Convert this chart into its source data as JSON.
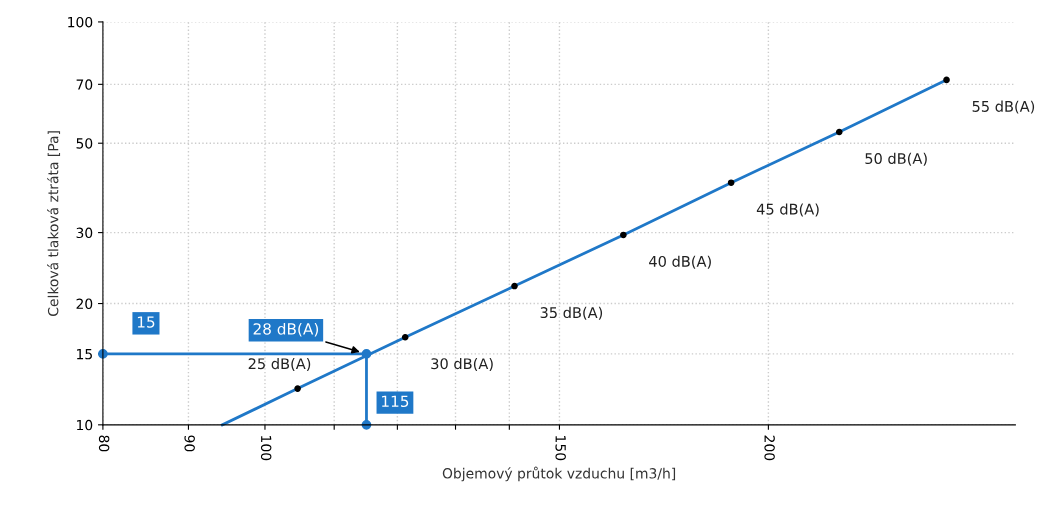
{
  "chart_data": {
    "type": "line",
    "xlabel": "Objemový průtok vzduchu [m3/h]",
    "ylabel": "Celková tlaková ztráta [Pa]",
    "log": "xy",
    "xlim": [
      80,
      281
    ],
    "xticks": [
      80,
      90,
      100,
      {
        "value": 110,
        "label": null
      },
      {
        "value": 120,
        "label": null
      },
      {
        "value": 130,
        "label": null
      },
      {
        "value": 140,
        "label": null
      },
      150,
      200
    ],
    "ylim": [
      10,
      100
    ],
    "yticks": [
      10,
      15,
      20,
      30,
      50,
      70,
      100
    ],
    "grid": true,
    "legend": false,
    "series": [
      {
        "color": "#1f78c8",
        "marker": "none",
        "x": [
          94.3,
          104.6,
          121.3,
          141,
          163.8,
          190,
          220.5,
          255.6
        ],
        "values": [
          10,
          12.3,
          16.5,
          22.1,
          29.6,
          39.9,
          53.3,
          71.8
        ]
      },
      {
        "type": "scatter",
        "color": "#000000",
        "marker": "circle",
        "x": [
          104.6,
          121.3,
          141,
          163.8,
          190,
          220.5,
          255.6
        ],
        "values": [
          12.3,
          16.5,
          22.1,
          29.6,
          39.9,
          53.3,
          71.8
        ]
      },
      {
        "color": "#1f78c8",
        "marker": "circle",
        "x": [
          80,
          115,
          115
        ],
        "values": [
          15,
          15,
          10
        ]
      }
    ],
    "annotations": [
      {
        "text": "15",
        "x": 80,
        "y": 15
      },
      {
        "text": "28 dB(A)",
        "x": 115,
        "y": 15
      },
      {
        "text": "115",
        "x": 115,
        "y": 10
      },
      {
        "text": "25 dB(A)",
        "x": 104.6,
        "y": 12.3
      },
      {
        "text": "30 dB(A)",
        "x": 121.3,
        "y": 16.5
      },
      {
        "text": "35 dB(A)",
        "x": 141,
        "y": 22.1
      },
      {
        "text": "40 dB(A)",
        "x": 163.8,
        "y": 29.6
      },
      {
        "text": "45 dB(A)",
        "x": 190,
        "y": 39.9
      },
      {
        "text": "50 dB(A)",
        "x": 220.5,
        "y": 53.3
      },
      {
        "text": "55 dB(A)",
        "x": 255.6,
        "y": 71.8
      }
    ]
  }
}
